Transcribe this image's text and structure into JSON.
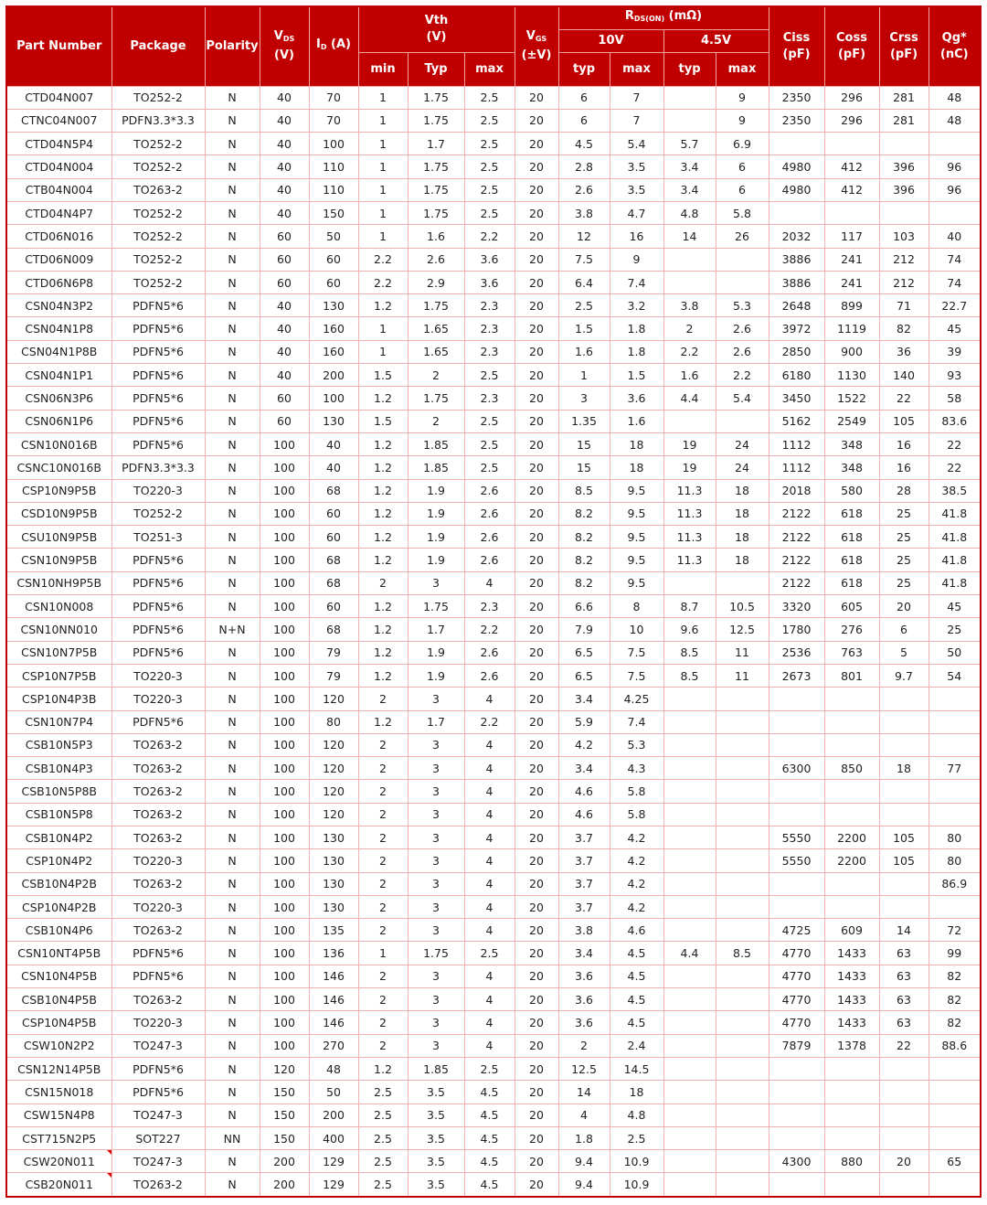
{
  "header": {
    "part": "Part Number",
    "package": "Package",
    "polarity": "Polarity",
    "vds": "V",
    "vds_sub": "DS",
    "vds_unit": "(V)",
    "id": "I",
    "id_sub": "D",
    "id_unit": " (A)",
    "vth": "Vth",
    "vth_unit": "(V)",
    "vth_min": "min",
    "vth_typ": "Typ",
    "vth_max": "max",
    "vgs": "V",
    "vgs_sub": "GS",
    "vgs_unit": "(±V)",
    "rds": "R",
    "rds_sub": "DS(ON)",
    "rds_unit": " (mΩ)",
    "v10": "10V",
    "v45": "4.5V",
    "typ": "typ",
    "max": "max",
    "ciss": "Ciss",
    "ciss_unit": "(pF)",
    "coss": "Coss",
    "coss_unit": "(pF)",
    "crss": "Crss",
    "crss_unit": "(pF)",
    "qg": "Qg*",
    "qg_unit": "(nC)"
  },
  "rows": [
    [
      "CTD04N007",
      "TO252-2",
      "N",
      "40",
      "70",
      "1",
      "1.75",
      "2.5",
      "20",
      "6",
      "7",
      "",
      "9",
      "2350",
      "296",
      "281",
      "48"
    ],
    [
      "CTNC04N007",
      "PDFN3.3*3.3",
      "N",
      "40",
      "70",
      "1",
      "1.75",
      "2.5",
      "20",
      "6",
      "7",
      "",
      "9",
      "2350",
      "296",
      "281",
      "48"
    ],
    [
      "CTD04N5P4",
      "TO252-2",
      "N",
      "40",
      "100",
      "1",
      "1.7",
      "2.5",
      "20",
      "4.5",
      "5.4",
      "5.7",
      "6.9",
      "",
      "",
      "",
      ""
    ],
    [
      "CTD04N004",
      "TO252-2",
      "N",
      "40",
      "110",
      "1",
      "1.75",
      "2.5",
      "20",
      "2.8",
      "3.5",
      "3.4",
      "6",
      "4980",
      "412",
      "396",
      "96"
    ],
    [
      "CTB04N004",
      "TO263-2",
      "N",
      "40",
      "110",
      "1",
      "1.75",
      "2.5",
      "20",
      "2.6",
      "3.5",
      "3.4",
      "6",
      "4980",
      "412",
      "396",
      "96"
    ],
    [
      "CTD04N4P7",
      "TO252-2",
      "N",
      "40",
      "150",
      "1",
      "1.75",
      "2.5",
      "20",
      "3.8",
      "4.7",
      "4.8",
      "5.8",
      "",
      "",
      "",
      ""
    ],
    [
      "CTD06N016",
      "TO252-2",
      "N",
      "60",
      "50",
      "1",
      "1.6",
      "2.2",
      "20",
      "12",
      "16",
      "14",
      "26",
      "2032",
      "117",
      "103",
      "40"
    ],
    [
      "CTD06N009",
      "TO252-2",
      "N",
      "60",
      "60",
      "2.2",
      "2.6",
      "3.6",
      "20",
      "7.5",
      "9",
      "",
      "",
      "3886",
      "241",
      "212",
      "74"
    ],
    [
      "CTD06N6P8",
      "TO252-2",
      "N",
      "60",
      "60",
      "2.2",
      "2.9",
      "3.6",
      "20",
      "6.4",
      "7.4",
      "",
      "",
      "3886",
      "241",
      "212",
      "74"
    ],
    [
      "CSN04N3P2",
      "PDFN5*6",
      "N",
      "40",
      "130",
      "1.2",
      "1.75",
      "2.3",
      "20",
      "2.5",
      "3.2",
      "3.8",
      "5.3",
      "2648",
      "899",
      "71",
      "22.7"
    ],
    [
      "CSN04N1P8",
      "PDFN5*6",
      "N",
      "40",
      "160",
      "1",
      "1.65",
      "2.3",
      "20",
      "1.5",
      "1.8",
      "2",
      "2.6",
      "3972",
      "1119",
      "82",
      "45"
    ],
    [
      "CSN04N1P8B",
      "PDFN5*6",
      "N",
      "40",
      "160",
      "1",
      "1.65",
      "2.3",
      "20",
      "1.6",
      "1.8",
      "2.2",
      "2.6",
      "2850",
      "900",
      "36",
      "39"
    ],
    [
      "CSN04N1P1",
      "PDFN5*6",
      "N",
      "40",
      "200",
      "1.5",
      "2",
      "2.5",
      "20",
      "1",
      "1.5",
      "1.6",
      "2.2",
      "6180",
      "1130",
      "140",
      "93"
    ],
    [
      "CSN06N3P6",
      "PDFN5*6",
      "N",
      "60",
      "100",
      "1.2",
      "1.75",
      "2.3",
      "20",
      "3",
      "3.6",
      "4.4",
      "5.4",
      "3450",
      "1522",
      "22",
      "58"
    ],
    [
      "CSN06N1P6",
      "PDFN5*6",
      "N",
      "60",
      "130",
      "1.5",
      "2",
      "2.5",
      "20",
      "1.35",
      "1.6",
      "",
      "",
      "5162",
      "2549",
      "105",
      "83.6"
    ],
    [
      "CSN10N016B",
      "PDFN5*6",
      "N",
      "100",
      "40",
      "1.2",
      "1.85",
      "2.5",
      "20",
      "15",
      "18",
      "19",
      "24",
      "1112",
      "348",
      "16",
      "22"
    ],
    [
      "CSNC10N016B",
      "PDFN3.3*3.3",
      "N",
      "100",
      "40",
      "1.2",
      "1.85",
      "2.5",
      "20",
      "15",
      "18",
      "19",
      "24",
      "1112",
      "348",
      "16",
      "22"
    ],
    [
      "CSP10N9P5B",
      "TO220-3",
      "N",
      "100",
      "68",
      "1.2",
      "1.9",
      "2.6",
      "20",
      "8.5",
      "9.5",
      "11.3",
      "18",
      "2018",
      "580",
      "28",
      "38.5"
    ],
    [
      "CSD10N9P5B",
      "TO252-2",
      "N",
      "100",
      "60",
      "1.2",
      "1.9",
      "2.6",
      "20",
      "8.2",
      "9.5",
      "11.3",
      "18",
      "2122",
      "618",
      "25",
      "41.8"
    ],
    [
      "CSU10N9P5B",
      "TO251-3",
      "N",
      "100",
      "60",
      "1.2",
      "1.9",
      "2.6",
      "20",
      "8.2",
      "9.5",
      "11.3",
      "18",
      "2122",
      "618",
      "25",
      "41.8"
    ],
    [
      "CSN10N9P5B",
      "PDFN5*6",
      "N",
      "100",
      "68",
      "1.2",
      "1.9",
      "2.6",
      "20",
      "8.2",
      "9.5",
      "11.3",
      "18",
      "2122",
      "618",
      "25",
      "41.8"
    ],
    [
      "CSN10NH9P5B",
      "PDFN5*6",
      "N",
      "100",
      "68",
      "2",
      "3",
      "4",
      "20",
      "8.2",
      "9.5",
      "",
      "",
      "2122",
      "618",
      "25",
      "41.8"
    ],
    [
      "CSN10N008",
      "PDFN5*6",
      "N",
      "100",
      "60",
      "1.2",
      "1.75",
      "2.3",
      "20",
      "6.6",
      "8",
      "8.7",
      "10.5",
      "3320",
      "605",
      "20",
      "45"
    ],
    [
      "CSN10NN010",
      "PDFN5*6",
      "N+N",
      "100",
      "68",
      "1.2",
      "1.7",
      "2.2",
      "20",
      "7.9",
      "10",
      "9.6",
      "12.5",
      "1780",
      "276",
      "6",
      "25"
    ],
    [
      "CSN10N7P5B",
      "PDFN5*6",
      "N",
      "100",
      "79",
      "1.2",
      "1.9",
      "2.6",
      "20",
      "6.5",
      "7.5",
      "8.5",
      "11",
      "2536",
      "763",
      "5",
      "50"
    ],
    [
      "CSP10N7P5B",
      "TO220-3",
      "N",
      "100",
      "79",
      "1.2",
      "1.9",
      "2.6",
      "20",
      "6.5",
      "7.5",
      "8.5",
      "11",
      "2673",
      "801",
      "9.7",
      "54"
    ],
    [
      "CSP10N4P3B",
      "TO220-3",
      "N",
      "100",
      "120",
      "2",
      "3",
      "4",
      "20",
      "3.4",
      "4.25",
      "",
      "",
      "",
      "",
      "",
      ""
    ],
    [
      "CSN10N7P4",
      "PDFN5*6",
      "N",
      "100",
      "80",
      "1.2",
      "1.7",
      "2.2",
      "20",
      "5.9",
      "7.4",
      "",
      "",
      "",
      "",
      "",
      ""
    ],
    [
      "CSB10N5P3",
      "TO263-2",
      "N",
      "100",
      "120",
      "2",
      "3",
      "4",
      "20",
      "4.2",
      "5.3",
      "",
      "",
      "",
      "",
      "",
      ""
    ],
    [
      "CSB10N4P3",
      "TO263-2",
      "N",
      "100",
      "120",
      "2",
      "3",
      "4",
      "20",
      "3.4",
      "4.3",
      "",
      "",
      "6300",
      "850",
      "18",
      "77"
    ],
    [
      "CSB10N5P8B",
      "TO263-2",
      "N",
      "100",
      "120",
      "2",
      "3",
      "4",
      "20",
      "4.6",
      "5.8",
      "",
      "",
      "",
      "",
      "",
      ""
    ],
    [
      "CSB10N5P8",
      "TO263-2",
      "N",
      "100",
      "120",
      "2",
      "3",
      "4",
      "20",
      "4.6",
      "5.8",
      "",
      "",
      "",
      "",
      "",
      ""
    ],
    [
      "CSB10N4P2",
      "TO263-2",
      "N",
      "100",
      "130",
      "2",
      "3",
      "4",
      "20",
      "3.7",
      "4.2",
      "",
      "",
      "5550",
      "2200",
      "105",
      "80"
    ],
    [
      "CSP10N4P2",
      "TO220-3",
      "N",
      "100",
      "130",
      "2",
      "3",
      "4",
      "20",
      "3.7",
      "4.2",
      "",
      "",
      "5550",
      "2200",
      "105",
      "80"
    ],
    [
      "CSB10N4P2B",
      "TO263-2",
      "N",
      "100",
      "130",
      "2",
      "3",
      "4",
      "20",
      "3.7",
      "4.2",
      "",
      "",
      "",
      "",
      "",
      "86.9"
    ],
    [
      "CSP10N4P2B",
      "TO220-3",
      "N",
      "100",
      "130",
      "2",
      "3",
      "4",
      "20",
      "3.7",
      "4.2",
      "",
      "",
      "",
      "",
      "",
      ""
    ],
    [
      "CSB10N4P6",
      "TO263-2",
      "N",
      "100",
      "135",
      "2",
      "3",
      "4",
      "20",
      "3.8",
      "4.6",
      "",
      "",
      "4725",
      "609",
      "14",
      "72"
    ],
    [
      "CSN10NT4P5B",
      "PDFN5*6",
      "N",
      "100",
      "136",
      "1",
      "1.75",
      "2.5",
      "20",
      "3.4",
      "4.5",
      "4.4",
      "8.5",
      "4770",
      "1433",
      "63",
      "99"
    ],
    [
      "CSN10N4P5B",
      "PDFN5*6",
      "N",
      "100",
      "146",
      "2",
      "3",
      "4",
      "20",
      "3.6",
      "4.5",
      "",
      "",
      "4770",
      "1433",
      "63",
      "82"
    ],
    [
      "CSB10N4P5B",
      "TO263-2",
      "N",
      "100",
      "146",
      "2",
      "3",
      "4",
      "20",
      "3.6",
      "4.5",
      "",
      "",
      "4770",
      "1433",
      "63",
      "82"
    ],
    [
      "CSP10N4P5B",
      "TO220-3",
      "N",
      "100",
      "146",
      "2",
      "3",
      "4",
      "20",
      "3.6",
      "4.5",
      "",
      "",
      "4770",
      "1433",
      "63",
      "82"
    ],
    [
      "CSW10N2P2",
      "TO247-3",
      "N",
      "100",
      "270",
      "2",
      "3",
      "4",
      "20",
      "2",
      "2.4",
      "",
      "",
      "7879",
      "1378",
      "22",
      "88.6"
    ],
    [
      "CSN12N14P5B",
      "PDFN5*6",
      "N",
      "120",
      "48",
      "1.2",
      "1.85",
      "2.5",
      "20",
      "12.5",
      "14.5",
      "",
      "",
      "",
      "",
      "",
      ""
    ],
    [
      "CSN15N018",
      "PDFN5*6",
      "N",
      "150",
      "50",
      "2.5",
      "3.5",
      "4.5",
      "20",
      "14",
      "18",
      "",
      "",
      "",
      "",
      "",
      ""
    ],
    [
      "CSW15N4P8",
      "TO247-3",
      "N",
      "150",
      "200",
      "2.5",
      "3.5",
      "4.5",
      "20",
      "4",
      "4.8",
      "",
      "",
      "",
      "",
      "",
      ""
    ],
    [
      "CST715N2P5",
      "SOT227",
      "NN",
      "150",
      "400",
      "2.5",
      "3.5",
      "4.5",
      "20",
      "1.8",
      "2.5",
      "",
      "",
      "",
      "",
      "",
      ""
    ],
    [
      "CSW20N011",
      "TO247-3",
      "N",
      "200",
      "129",
      "2.5",
      "3.5",
      "4.5",
      "20",
      "9.4",
      "10.9",
      "",
      "",
      "4300",
      "880",
      "20",
      "65"
    ],
    [
      "CSB20N011",
      "TO263-2",
      "N",
      "200",
      "129",
      "2.5",
      "3.5",
      "4.5",
      "20",
      "9.4",
      "10.9",
      "",
      "",
      "",
      "",
      "",
      ""
    ]
  ],
  "colors": {
    "header_bg": "#c00000",
    "grid": "#f4b0b0"
  }
}
